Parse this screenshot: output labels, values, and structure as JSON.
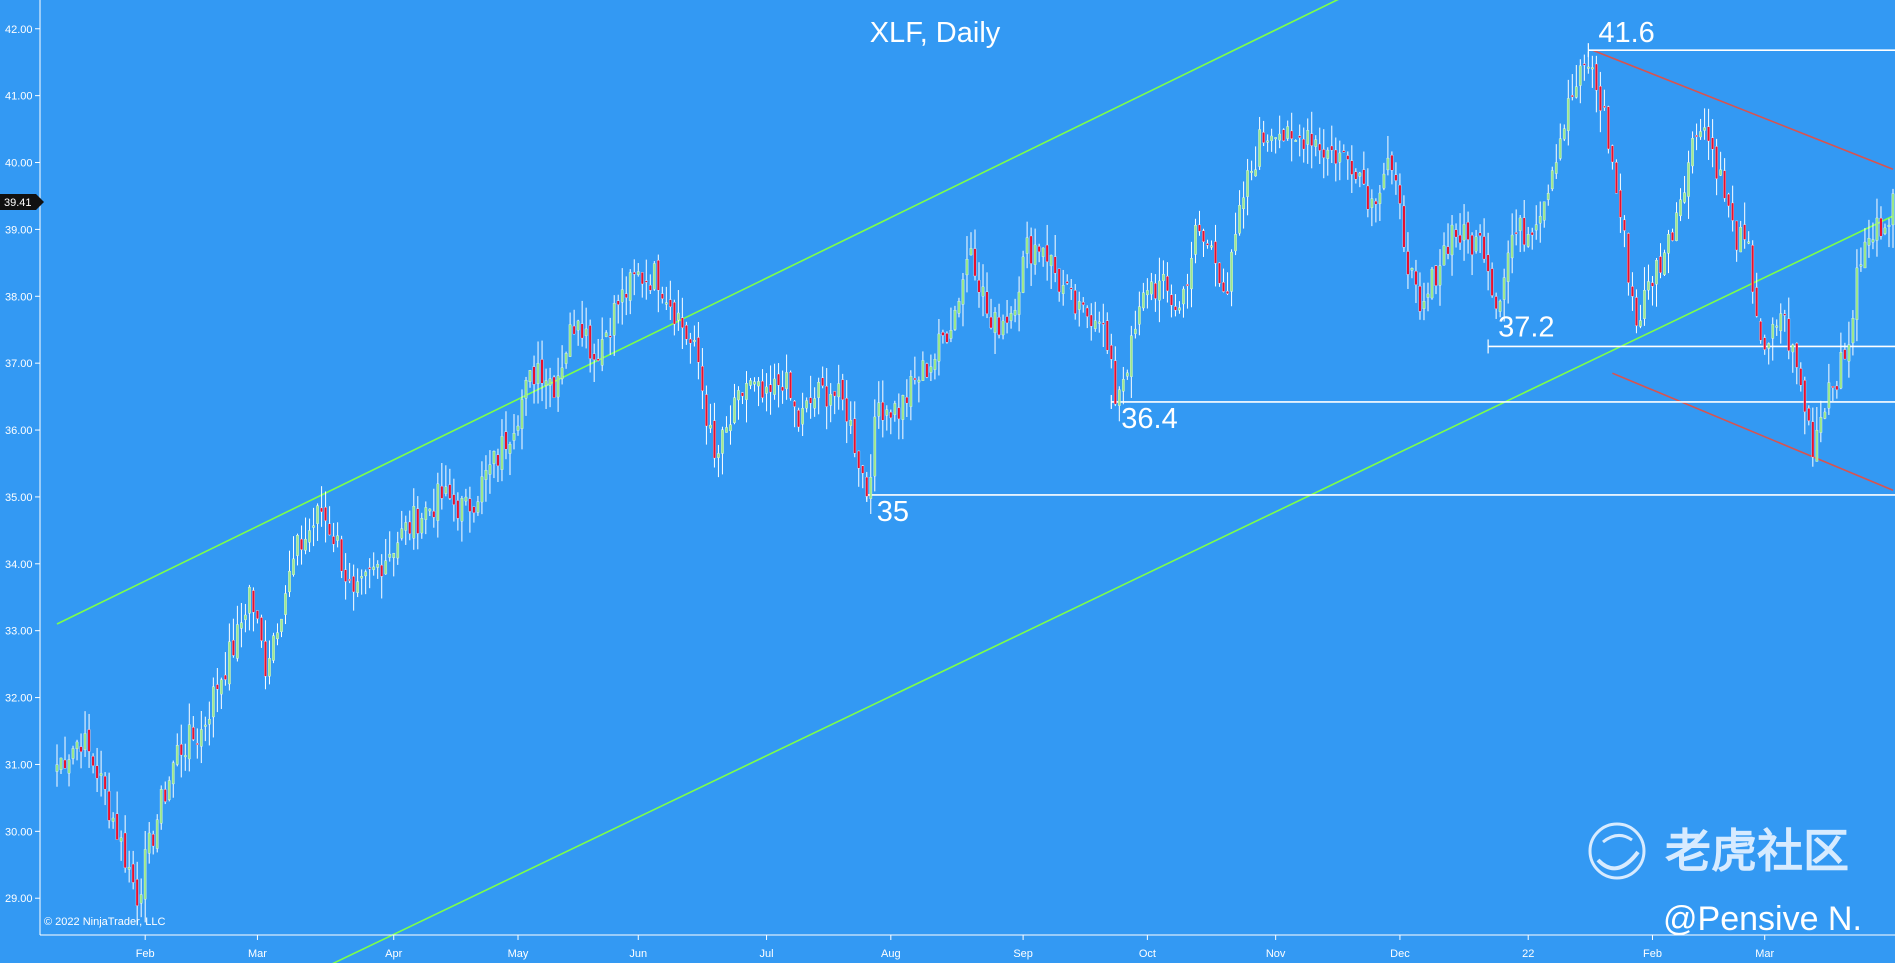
{
  "chart_data": {
    "type": "candlestick",
    "title": "XLF, Daily",
    "copyright": "© 2022 NinjaTrader, LLC",
    "watermark": {
      "brand": "老虎社区",
      "author": "@Pensive N."
    },
    "current_price": {
      "label": "39.41",
      "value": 39.41
    },
    "y_axis": {
      "ylim": [
        28.45,
        42.43
      ],
      "ticks": [
        "42.00",
        "41.00",
        "40.00",
        "39.00",
        "38.00",
        "37.00",
        "36.00",
        "35.00",
        "34.00",
        "33.00",
        "32.00",
        "31.00",
        "30.00",
        "29.00"
      ]
    },
    "x_axis": {
      "ticks": [
        {
          "label": "Feb",
          "day": 22
        },
        {
          "label": "Mar",
          "day": 50
        },
        {
          "label": "Apr",
          "day": 84
        },
        {
          "label": "May",
          "day": 115
        },
        {
          "label": "Jun",
          "day": 145
        },
        {
          "label": "Jul",
          "day": 177
        },
        {
          "label": "Aug",
          "day": 208
        },
        {
          "label": "Sep",
          "day": 241
        },
        {
          "label": "Oct",
          "day": 272
        },
        {
          "label": "Nov",
          "day": 304
        },
        {
          "label": "Dec",
          "day": 335
        },
        {
          "label": "22",
          "day": 367
        },
        {
          "label": "Feb",
          "day": 398
        },
        {
          "label": "Mar",
          "day": 426
        }
      ],
      "total_days": 458
    },
    "annotations": [
      {
        "label": "41.6",
        "level": 41.68,
        "from_day": 382,
        "to_day": 458
      },
      {
        "label": "37.2",
        "level": 37.25,
        "from_day": 357,
        "to_day": 458
      },
      {
        "label": "36.4",
        "level": 36.42,
        "from_day": 263,
        "to_day": 458
      },
      {
        "label": "35",
        "level": 35.03,
        "from_day": 202,
        "to_day": 458
      }
    ],
    "trendlines": [
      {
        "name": "channel-upper",
        "color": "#7cff4a",
        "points": [
          [
            0,
            33.1
          ],
          [
            320,
            42.45
          ]
        ]
      },
      {
        "name": "channel-lower",
        "color": "#7cff4a",
        "points": [
          [
            68,
            28.0
          ],
          [
            458,
            39.2
          ]
        ]
      },
      {
        "name": "downtrend-upper",
        "color": "#d9534f",
        "points": [
          [
            383,
            41.68
          ],
          [
            458,
            39.9
          ]
        ]
      },
      {
        "name": "downtrend-lower",
        "color": "#d9534f",
        "points": [
          [
            388,
            36.85
          ],
          [
            458,
            35.1
          ]
        ]
      }
    ],
    "anchors": [
      {
        "day": 0,
        "close": 31.0
      },
      {
        "day": 6,
        "close": 31.4
      },
      {
        "day": 10,
        "close": 30.9
      },
      {
        "day": 14,
        "close": 30.2
      },
      {
        "day": 20,
        "close": 29.05
      },
      {
        "day": 25,
        "close": 30.2
      },
      {
        "day": 30,
        "close": 31.2
      },
      {
        "day": 36,
        "close": 31.5
      },
      {
        "day": 40,
        "close": 32.2
      },
      {
        "day": 45,
        "close": 32.9
      },
      {
        "day": 48,
        "close": 33.6
      },
      {
        "day": 52,
        "close": 32.5
      },
      {
        "day": 56,
        "close": 33.4
      },
      {
        "day": 60,
        "close": 34.2
      },
      {
        "day": 66,
        "close": 34.8
      },
      {
        "day": 70,
        "close": 34.3
      },
      {
        "day": 74,
        "close": 33.4
      },
      {
        "day": 78,
        "close": 33.8
      },
      {
        "day": 84,
        "close": 34.3
      },
      {
        "day": 90,
        "close": 34.7
      },
      {
        "day": 96,
        "close": 35.0
      },
      {
        "day": 102,
        "close": 34.8
      },
      {
        "day": 106,
        "close": 35.2
      },
      {
        "day": 110,
        "close": 35.6
      },
      {
        "day": 115,
        "close": 36.3
      },
      {
        "day": 120,
        "close": 37.0
      },
      {
        "day": 124,
        "close": 36.7
      },
      {
        "day": 130,
        "close": 37.8
      },
      {
        "day": 134,
        "close": 37.1
      },
      {
        "day": 140,
        "close": 37.9
      },
      {
        "day": 145,
        "close": 38.3
      },
      {
        "day": 150,
        "close": 38.3
      },
      {
        "day": 155,
        "close": 37.7
      },
      {
        "day": 160,
        "close": 37.0
      },
      {
        "day": 164,
        "close": 35.5
      },
      {
        "day": 168,
        "close": 36.1
      },
      {
        "day": 172,
        "close": 36.7
      },
      {
        "day": 177,
        "close": 36.4
      },
      {
        "day": 181,
        "close": 36.8
      },
      {
        "day": 185,
        "close": 36.1
      },
      {
        "day": 189,
        "close": 36.5
      },
      {
        "day": 193,
        "close": 36.6
      },
      {
        "day": 197,
        "close": 36.3
      },
      {
        "day": 202,
        "close": 35.1
      },
      {
        "day": 205,
        "close": 36.4
      },
      {
        "day": 210,
        "close": 36.3
      },
      {
        "day": 215,
        "close": 36.8
      },
      {
        "day": 219,
        "close": 37.1
      },
      {
        "day": 224,
        "close": 37.8
      },
      {
        "day": 228,
        "close": 38.8
      },
      {
        "day": 233,
        "close": 37.5
      },
      {
        "day": 238,
        "close": 37.8
      },
      {
        "day": 242,
        "close": 38.7
      },
      {
        "day": 246,
        "close": 38.8
      },
      {
        "day": 250,
        "close": 38.2
      },
      {
        "day": 255,
        "close": 37.7
      },
      {
        "day": 260,
        "close": 37.8
      },
      {
        "day": 264,
        "close": 36.5
      },
      {
        "day": 268,
        "close": 37.2
      },
      {
        "day": 272,
        "close": 38.2
      },
      {
        "day": 276,
        "close": 38.1
      },
      {
        "day": 280,
        "close": 37.8
      },
      {
        "day": 284,
        "close": 38.9
      },
      {
        "day": 288,
        "close": 38.7
      },
      {
        "day": 292,
        "close": 38.1
      },
      {
        "day": 296,
        "close": 39.5
      },
      {
        "day": 300,
        "close": 40.3
      },
      {
        "day": 304,
        "close": 40.6
      },
      {
        "day": 308,
        "close": 40.2
      },
      {
        "day": 312,
        "close": 40.5
      },
      {
        "day": 316,
        "close": 40.2
      },
      {
        "day": 320,
        "close": 40.1
      },
      {
        "day": 324,
        "close": 40.0
      },
      {
        "day": 328,
        "close": 39.4
      },
      {
        "day": 332,
        "close": 40.1
      },
      {
        "day": 336,
        "close": 38.9
      },
      {
        "day": 340,
        "close": 37.6
      },
      {
        "day": 344,
        "close": 38.4
      },
      {
        "day": 348,
        "close": 39.0
      },
      {
        "day": 352,
        "close": 38.8
      },
      {
        "day": 356,
        "close": 38.8
      },
      {
        "day": 359,
        "close": 37.9
      },
      {
        "day": 363,
        "close": 38.9
      },
      {
        "day": 367,
        "close": 39.0
      },
      {
        "day": 371,
        "close": 39.5
      },
      {
        "day": 374,
        "close": 40.2
      },
      {
        "day": 378,
        "close": 41.0
      },
      {
        "day": 382,
        "close": 41.5
      },
      {
        "day": 386,
        "close": 40.7
      },
      {
        "day": 390,
        "close": 39.2
      },
      {
        "day": 394,
        "close": 37.6
      },
      {
        "day": 398,
        "close": 38.3
      },
      {
        "day": 402,
        "close": 38.8
      },
      {
        "day": 406,
        "close": 39.8
      },
      {
        "day": 410,
        "close": 40.7
      },
      {
        "day": 414,
        "close": 40.0
      },
      {
        "day": 418,
        "close": 39.0
      },
      {
        "day": 422,
        "close": 38.6
      },
      {
        "day": 426,
        "close": 37.0
      },
      {
        "day": 430,
        "close": 37.8
      },
      {
        "day": 434,
        "close": 36.9
      },
      {
        "day": 438,
        "close": 35.8
      },
      {
        "day": 442,
        "close": 36.7
      },
      {
        "day": 446,
        "close": 37.0
      },
      {
        "day": 450,
        "close": 38.6
      },
      {
        "day": 454,
        "close": 39.0
      },
      {
        "day": 458,
        "close": 39.41
      }
    ],
    "grid": false,
    "legend": "none"
  }
}
